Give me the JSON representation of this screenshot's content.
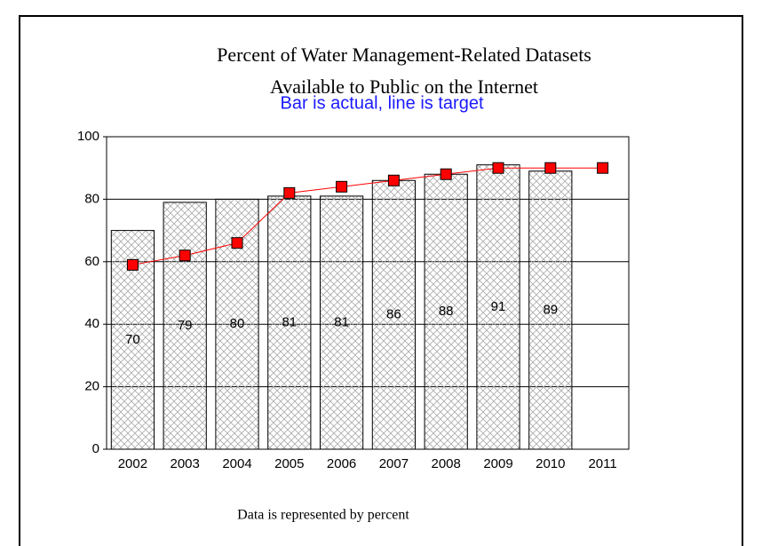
{
  "chart_data": {
    "type": "bar_line",
    "title": [
      "Percent of Water Management-Related Datasets",
      "Available to Public on the Internet"
    ],
    "subtitle": "Bar is actual, line is target",
    "note": "Data is represented by percent",
    "categories": [
      "2002",
      "2003",
      "2004",
      "2005",
      "2006",
      "2007",
      "2008",
      "2009",
      "2010",
      "2011"
    ],
    "series": [
      {
        "type": "bar",
        "color": "#999999",
        "values": [
          70,
          79,
          80,
          81,
          81,
          86,
          88,
          91,
          89,
          null
        ]
      },
      {
        "type": "line",
        "color": "#ff0000",
        "values": [
          59,
          62,
          66,
          82,
          84,
          86,
          88,
          90,
          90,
          90
        ]
      }
    ],
    "ylim": [
      0,
      100
    ],
    "yticks": [
      0,
      20,
      40,
      60,
      80,
      100
    ],
    "grid": true
  }
}
